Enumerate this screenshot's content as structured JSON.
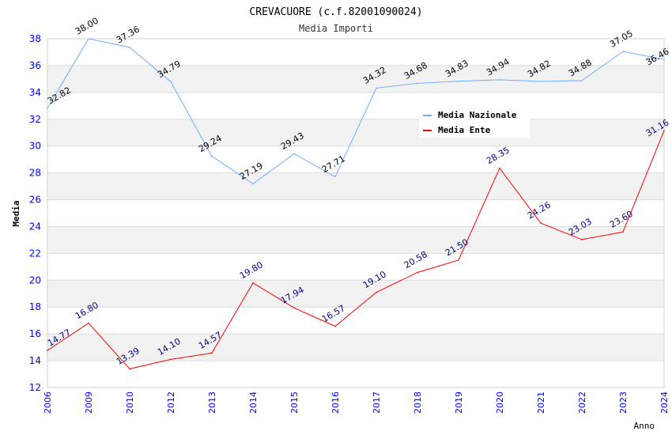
{
  "chart_data": {
    "type": "line",
    "title": "CREVACUORE (c.f.82001090024)",
    "subtitle": "Media Importi",
    "xlabel": "Anno",
    "ylabel": "Media",
    "ylim": [
      12,
      38
    ],
    "yticks": [
      12,
      14,
      16,
      18,
      20,
      22,
      24,
      26,
      28,
      30,
      32,
      34,
      36,
      38
    ],
    "grid": true,
    "legend_position": "top-right",
    "categories": [
      "2006",
      "2009",
      "2010",
      "2012",
      "2013",
      "2014",
      "2015",
      "2016",
      "2017",
      "2018",
      "2019",
      "2020",
      "2021",
      "2022",
      "2023",
      "2024"
    ],
    "series": [
      {
        "name": "Media Nazionale",
        "color": "#6aaeff",
        "label_color": "#000000",
        "values": [
          32.82,
          38.0,
          37.36,
          34.79,
          29.24,
          27.19,
          29.43,
          27.71,
          34.32,
          34.68,
          34.83,
          34.94,
          34.82,
          34.88,
          37.05,
          36.46
        ]
      },
      {
        "name": "Media Ente",
        "color": "#ff0000",
        "label_color": "#00008b",
        "values": [
          14.77,
          16.8,
          13.39,
          14.1,
          14.57,
          19.8,
          17.94,
          16.57,
          19.1,
          20.58,
          21.5,
          28.35,
          24.26,
          23.03,
          23.6,
          31.16
        ]
      }
    ]
  }
}
